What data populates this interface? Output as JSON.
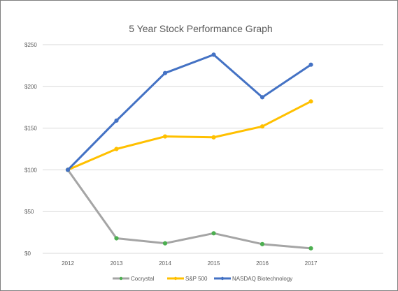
{
  "chart_data": {
    "type": "line",
    "title": "5 Year Stock Performance  Graph",
    "xlabel": "",
    "ylabel": "",
    "categories": [
      "2012",
      "2013",
      "2014",
      "2015",
      "2016",
      "2017"
    ],
    "ylim": [
      0,
      250
    ],
    "yticks": [
      0,
      50,
      100,
      150,
      200,
      250
    ],
    "ytick_labels": [
      "$0",
      "$50",
      "$100",
      "$150",
      "$200",
      "$250"
    ],
    "grid": true,
    "legend_position": "bottom",
    "series": [
      {
        "name": "Cocrystal",
        "color": "#a5a5a5",
        "marker_color": "#4caf50",
        "values": [
          100,
          18,
          12,
          24,
          11,
          6
        ]
      },
      {
        "name": "S&P 500",
        "color": "#ffc000",
        "marker_color": "#ffc000",
        "values": [
          100,
          125,
          140,
          139,
          152,
          182
        ]
      },
      {
        "name": "NASDAQ Biotechnology",
        "color": "#4472c4",
        "marker_color": "#4472c4",
        "values": [
          100,
          159,
          216,
          238,
          187,
          226
        ]
      }
    ]
  }
}
